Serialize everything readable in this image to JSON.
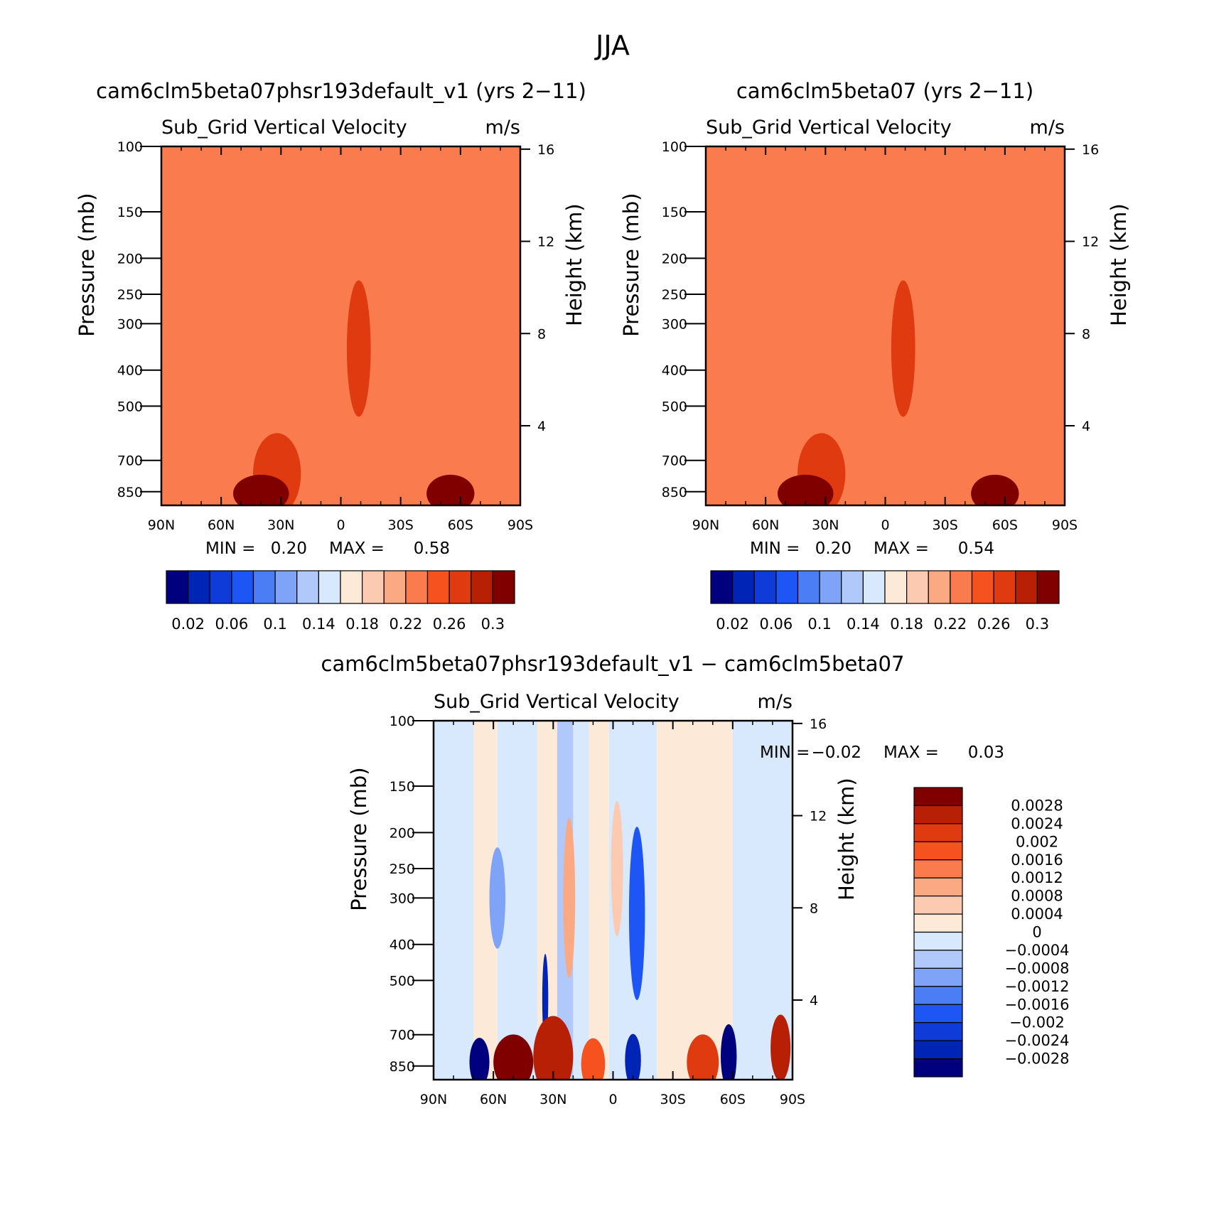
{
  "figure": {
    "title": "JJA"
  },
  "palettes": {
    "abs": [
      "#00007f",
      "#0024b5",
      "#0f3cd8",
      "#1e56f5",
      "#4b7df5",
      "#7ea3f7",
      "#b0c8fa",
      "#d8e8fd",
      "#fde9d8",
      "#fccab0",
      "#fba982",
      "#fa7c4e",
      "#f5521f",
      "#e03a10",
      "#b82005",
      "#800000"
    ],
    "diff": [
      "#00007f",
      "#0024b5",
      "#0f3cd8",
      "#1e56f5",
      "#4b7df5",
      "#7ea3f7",
      "#b0c8fa",
      "#d8e8fd",
      "#fde9d8",
      "#fccab0",
      "#fba982",
      "#fa7c4e",
      "#f5521f",
      "#e03a10",
      "#b82005",
      "#800000"
    ]
  },
  "chart_data": [
    {
      "type": "heatmap",
      "title": "cam6clm5beta07phsr193default_v1 (yrs 2−11)",
      "left_subtitle": "Sub_Grid Vertical Velocity",
      "right_subtitle": "m/s",
      "ylabel": "Pressure (mb)",
      "y2label": "Height (km)",
      "x_ticks": [
        "90N",
        "60N",
        "30N",
        "0",
        "30S",
        "60S",
        "90S"
      ],
      "x_values": [
        90,
        60,
        30,
        0,
        -30,
        -60,
        -90
      ],
      "y_ticks": [
        100,
        150,
        200,
        250,
        300,
        400,
        500,
        700,
        850
      ],
      "y2_ticks": [
        16,
        12,
        8,
        4
      ],
      "ylim": [
        100,
        925
      ],
      "min_label": "MIN =",
      "min_value": "0.20",
      "max_label": "MAX =",
      "max_value": "0.58",
      "colorbar_labels": [
        "0.02",
        "0.06",
        "0.1",
        "0.14",
        "0.18",
        "0.22",
        "0.26",
        "0.3"
      ],
      "background_value": 0.22,
      "features": [
        {
          "lat": -9,
          "p": 350,
          "dlat": 6,
          "dp": 175,
          "value": 0.26
        },
        {
          "lat": 32,
          "p": 760,
          "dlat": 12,
          "dp": 200,
          "value": 0.26
        },
        {
          "lat": 40,
          "p": 860,
          "dlat": 14,
          "dp": 90,
          "value": 0.3
        },
        {
          "lat": -55,
          "p": 860,
          "dlat": 12,
          "dp": 90,
          "value": 0.3
        }
      ]
    },
    {
      "type": "heatmap",
      "title": "cam6clm5beta07 (yrs 2−11)",
      "left_subtitle": "Sub_Grid Vertical Velocity",
      "right_subtitle": "m/s",
      "ylabel": "Pressure (mb)",
      "y2label": "Height (km)",
      "x_ticks": [
        "90N",
        "60N",
        "30N",
        "0",
        "30S",
        "60S",
        "90S"
      ],
      "x_values": [
        90,
        60,
        30,
        0,
        -30,
        -60,
        -90
      ],
      "y_ticks": [
        100,
        150,
        200,
        250,
        300,
        400,
        500,
        700,
        850
      ],
      "y2_ticks": [
        16,
        12,
        8,
        4
      ],
      "ylim": [
        100,
        925
      ],
      "min_label": "MIN =",
      "min_value": "0.20",
      "max_label": "MAX =",
      "max_value": "0.54",
      "colorbar_labels": [
        "0.02",
        "0.06",
        "0.1",
        "0.14",
        "0.18",
        "0.22",
        "0.26",
        "0.3"
      ],
      "background_value": 0.22,
      "features": [
        {
          "lat": -9,
          "p": 350,
          "dlat": 6,
          "dp": 175,
          "value": 0.26
        },
        {
          "lat": 32,
          "p": 760,
          "dlat": 12,
          "dp": 200,
          "value": 0.26
        },
        {
          "lat": 40,
          "p": 860,
          "dlat": 14,
          "dp": 90,
          "value": 0.3
        },
        {
          "lat": -55,
          "p": 860,
          "dlat": 12,
          "dp": 90,
          "value": 0.3
        }
      ]
    },
    {
      "type": "heatmap",
      "title": "cam6clm5beta07phsr193default_v1 − cam6clm5beta07",
      "left_subtitle": "Sub_Grid Vertical Velocity",
      "right_subtitle": "m/s",
      "ylabel": "Pressure (mb)",
      "y2label": "Height (km)",
      "x_ticks": [
        "90N",
        "60N",
        "30N",
        "0",
        "30S",
        "60S",
        "90S"
      ],
      "x_values": [
        90,
        60,
        30,
        0,
        -30,
        -60,
        -90
      ],
      "y_ticks": [
        100,
        150,
        200,
        250,
        300,
        400,
        500,
        700,
        850
      ],
      "y2_ticks": [
        16,
        12,
        8,
        4
      ],
      "ylim": [
        100,
        925
      ],
      "min_label": "MIN =",
      "min_value": "−0.02",
      "max_label": "MAX =",
      "max_value": "0.03",
      "colorbar_labels": [
        "0.0028",
        "0.0024",
        "0.002",
        "0.0016",
        "0.0012",
        "0.0008",
        "0.0004",
        "0",
        "−0.0004",
        "−0.0008",
        "−0.0012",
        "−0.0016",
        "−0.002",
        "−0.0024",
        "−0.0028"
      ],
      "bands_lat": [
        {
          "lat0": 90,
          "lat1": 70,
          "value": -0.0002
        },
        {
          "lat0": 70,
          "lat1": 58,
          "value": 0.0002
        },
        {
          "lat0": 58,
          "lat1": 38,
          "value": -0.0002
        },
        {
          "lat0": 38,
          "lat1": 28,
          "value": 0.0002
        },
        {
          "lat0": 28,
          "lat1": 20,
          "value": -0.0006
        },
        {
          "lat0": 20,
          "lat1": 12,
          "value": -0.0002
        },
        {
          "lat0": 12,
          "lat1": 2,
          "value": 0.0002
        },
        {
          "lat0": 2,
          "lat1": -22,
          "value": -0.0002
        },
        {
          "lat0": -22,
          "lat1": -60,
          "value": 0.0002
        },
        {
          "lat0": -60,
          "lat1": -90,
          "value": -0.0002
        }
      ],
      "features": [
        {
          "lat": -12,
          "p": 330,
          "dlat": 4,
          "dp": 220,
          "value": -0.0018
        },
        {
          "lat": 58,
          "p": 300,
          "dlat": 4,
          "dp": 100,
          "value": -0.0009
        },
        {
          "lat": 34,
          "p": 560,
          "dlat": 1.5,
          "dp": 160,
          "value": -0.0026
        },
        {
          "lat": 22,
          "p": 300,
          "dlat": 3,
          "dp": 180,
          "value": 0.0008
        },
        {
          "lat": -2,
          "p": 250,
          "dlat": 3,
          "dp": 120,
          "value": 0.0006
        },
        {
          "lat": 67,
          "p": 830,
          "dlat": 5,
          "dp": 110,
          "value": -0.003
        },
        {
          "lat": 50,
          "p": 830,
          "dlat": 10,
          "dp": 130,
          "value": 0.003
        },
        {
          "lat": 30,
          "p": 800,
          "dlat": 10,
          "dp": 200,
          "value": 0.0025
        },
        {
          "lat": 10,
          "p": 840,
          "dlat": 6,
          "dp": 120,
          "value": 0.0018
        },
        {
          "lat": -10,
          "p": 820,
          "dlat": 4,
          "dp": 120,
          "value": -0.0026
        },
        {
          "lat": -45,
          "p": 830,
          "dlat": 8,
          "dp": 130,
          "value": 0.0022
        },
        {
          "lat": -58,
          "p": 800,
          "dlat": 4,
          "dp": 150,
          "value": -0.003
        },
        {
          "lat": -84,
          "p": 760,
          "dlat": 5,
          "dp": 150,
          "value": 0.0026
        }
      ]
    }
  ]
}
